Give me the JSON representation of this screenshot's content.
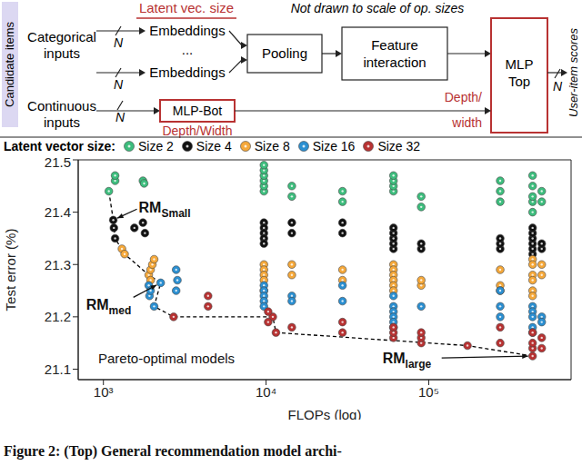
{
  "diagram": {
    "sidebar": "Candidate items",
    "note": "Not drawn to scale of op. sizes",
    "categorical_input": "Categorical inputs",
    "continuous_input": "Continuous inputs",
    "count_label": "N",
    "embeddings": [
      "Embeddings",
      "...",
      "Embeddings"
    ],
    "embeddings_knob": "Latent vec. size",
    "pooling": "Pooling",
    "feature_interaction": "Feature interaction",
    "mlp_bot": "MLP-Bot",
    "mlp_bot_knob": "Depth/Width",
    "mlp_top": "MLP Top",
    "mlp_top_knob": "Depth/ width",
    "output": "User-item scores"
  },
  "chart_data": {
    "type": "scatter",
    "legend_title": "Latent vector size:",
    "x_label": "FLOPs (log)",
    "y_label": "Test error (%)",
    "log": "x",
    "xlim": [
      700,
      750000
    ],
    "xticks": [
      {
        "value": 1000,
        "label": "10³"
      },
      {
        "value": 10000,
        "label": "10⁴"
      },
      {
        "value": 100000,
        "label": "10⁵"
      }
    ],
    "ylim": [
      21.08,
      21.5
    ],
    "yticks": [
      21.1,
      21.2,
      21.3,
      21.4,
      21.5
    ],
    "grid": false,
    "marker": "circle",
    "series": [
      {
        "name": "Size 2",
        "color": "#3dbd7d",
        "points": [
          [
            1080,
            21.44
          ],
          [
            1180,
            21.46
          ],
          [
            1180,
            21.47
          ],
          [
            1750,
            21.46
          ],
          [
            1780,
            21.455
          ],
          [
            9700,
            21.44
          ],
          [
            9700,
            21.45
          ],
          [
            9700,
            21.46
          ],
          [
            9700,
            21.47
          ],
          [
            9700,
            21.48
          ],
          [
            9700,
            21.49
          ],
          [
            14400,
            21.43
          ],
          [
            14400,
            21.45
          ],
          [
            29500,
            21.42
          ],
          [
            29500,
            21.44
          ],
          [
            60700,
            21.44
          ],
          [
            60700,
            21.45
          ],
          [
            60700,
            21.46
          ],
          [
            60700,
            21.47
          ],
          [
            89900,
            21.41
          ],
          [
            89900,
            21.43
          ],
          [
            275000,
            21.42
          ],
          [
            275000,
            21.44
          ],
          [
            275000,
            21.46
          ],
          [
            435000,
            21.4
          ],
          [
            435000,
            21.42
          ],
          [
            435000,
            21.43
          ],
          [
            435000,
            21.45
          ],
          [
            435000,
            21.47
          ],
          [
            495000,
            21.42
          ],
          [
            495000,
            21.44
          ]
        ]
      },
      {
        "name": "Size 4",
        "color": "#111111",
        "points": [
          [
            1150,
            21.385
          ],
          [
            1160,
            21.37
          ],
          [
            1180,
            21.35
          ],
          [
            1550,
            21.37
          ],
          [
            1750,
            21.38
          ],
          [
            1800,
            21.36
          ],
          [
            9700,
            21.38
          ],
          [
            9700,
            21.37
          ],
          [
            9700,
            21.36
          ],
          [
            9700,
            21.35
          ],
          [
            9700,
            21.34
          ],
          [
            14400,
            21.36
          ],
          [
            14400,
            21.38
          ],
          [
            29500,
            21.36
          ],
          [
            29500,
            21.38
          ],
          [
            60700,
            21.33
          ],
          [
            60700,
            21.34
          ],
          [
            60700,
            21.35
          ],
          [
            60700,
            21.36
          ],
          [
            60700,
            21.37
          ],
          [
            89900,
            21.33
          ],
          [
            89900,
            21.34
          ],
          [
            275000,
            21.33
          ],
          [
            275000,
            21.34
          ],
          [
            275000,
            21.35
          ],
          [
            435000,
            21.32
          ],
          [
            435000,
            21.33
          ],
          [
            435000,
            21.34
          ],
          [
            435000,
            21.35
          ],
          [
            435000,
            21.36
          ],
          [
            435000,
            21.37
          ],
          [
            495000,
            21.33
          ],
          [
            495000,
            21.34
          ]
        ]
      },
      {
        "name": "Size 8",
        "color": "#f5a83a",
        "points": [
          [
            1300,
            21.33
          ],
          [
            1350,
            21.32
          ],
          [
            1900,
            21.28
          ],
          [
            1950,
            21.27
          ],
          [
            1950,
            21.29
          ],
          [
            2000,
            21.3
          ],
          [
            2050,
            21.31
          ],
          [
            9700,
            21.3
          ],
          [
            9700,
            21.29
          ],
          [
            9700,
            21.28
          ],
          [
            9700,
            21.27
          ],
          [
            9700,
            21.25
          ],
          [
            14400,
            21.3
          ],
          [
            14400,
            21.28
          ],
          [
            29500,
            21.27
          ],
          [
            29500,
            21.29
          ],
          [
            60700,
            21.3
          ],
          [
            60700,
            21.29
          ],
          [
            60700,
            21.28
          ],
          [
            60700,
            21.27
          ],
          [
            60700,
            21.26
          ],
          [
            60700,
            21.25
          ],
          [
            89900,
            21.26
          ],
          [
            89900,
            21.27
          ],
          [
            275000,
            21.29
          ],
          [
            275000,
            21.26
          ],
          [
            275000,
            21.25
          ],
          [
            435000,
            21.31
          ],
          [
            435000,
            21.3
          ],
          [
            435000,
            21.28
          ],
          [
            435000,
            21.27
          ],
          [
            435000,
            21.25
          ],
          [
            435000,
            21.24
          ],
          [
            495000,
            21.28
          ],
          [
            495000,
            21.3
          ]
        ]
      },
      {
        "name": "Size 16",
        "color": "#2b8fd1",
        "points": [
          [
            1900,
            21.26
          ],
          [
            1920,
            21.24
          ],
          [
            1950,
            21.25
          ],
          [
            2250,
            21.265
          ],
          [
            2050,
            21.22
          ],
          [
            2800,
            21.29
          ],
          [
            2850,
            21.27
          ],
          [
            2800,
            21.25
          ],
          [
            9700,
            21.26
          ],
          [
            9700,
            21.25
          ],
          [
            9700,
            21.24
          ],
          [
            9700,
            21.23
          ],
          [
            9700,
            21.22
          ],
          [
            14400,
            21.24
          ],
          [
            14400,
            21.23
          ],
          [
            29500,
            21.26
          ],
          [
            29500,
            21.23
          ],
          [
            60700,
            21.24
          ],
          [
            60700,
            21.22
          ],
          [
            60700,
            21.21
          ],
          [
            60700,
            21.2
          ],
          [
            60700,
            21.19
          ],
          [
            60700,
            21.18
          ],
          [
            89900,
            21.22
          ],
          [
            275000,
            21.25
          ],
          [
            275000,
            21.22
          ],
          [
            275000,
            21.2
          ],
          [
            435000,
            21.22
          ],
          [
            435000,
            21.21
          ],
          [
            435000,
            21.2
          ],
          [
            435000,
            21.18
          ],
          [
            435000,
            21.17
          ],
          [
            495000,
            21.2
          ],
          [
            495000,
            21.19
          ]
        ]
      },
      {
        "name": "Size 32",
        "color": "#b83232",
        "points": [
          [
            2700,
            21.2
          ],
          [
            4400,
            21.24
          ],
          [
            4400,
            21.22
          ],
          [
            11000,
            21.2
          ],
          [
            11500,
            21.17
          ],
          [
            10300,
            21.21
          ],
          [
            10300,
            21.19
          ],
          [
            14400,
            21.18
          ],
          [
            29500,
            21.19
          ],
          [
            29500,
            21.17
          ],
          [
            60700,
            21.16
          ],
          [
            60700,
            21.17
          ],
          [
            60700,
            21.18
          ],
          [
            89900,
            21.15
          ],
          [
            89900,
            21.16
          ],
          [
            89900,
            21.17
          ],
          [
            173000,
            21.145
          ],
          [
            275000,
            21.15
          ],
          [
            275000,
            21.18
          ],
          [
            435000,
            21.125
          ],
          [
            435000,
            21.14
          ],
          [
            435000,
            21.15
          ],
          [
            435000,
            21.17
          ],
          [
            495000,
            21.16
          ],
          [
            495000,
            21.14
          ]
        ]
      }
    ],
    "pareto": {
      "color": "#000000",
      "line_style": "dashed",
      "points": [
        [
          1080,
          21.44
        ],
        [
          1150,
          21.385
        ],
        [
          1180,
          21.35
        ],
        [
          1350,
          21.32
        ],
        [
          1900,
          21.28
        ],
        [
          2250,
          21.265
        ],
        [
          2050,
          21.22
        ],
        [
          2700,
          21.2
        ],
        [
          11000,
          21.2
        ],
        [
          11500,
          21.17
        ],
        [
          173000,
          21.145
        ],
        [
          435000,
          21.125
        ]
      ]
    },
    "annotations": [
      {
        "text": "RM",
        "subscript": "Small",
        "x": 1150,
        "y": 21.385
      },
      {
        "text": "RM",
        "subscript": "med",
        "x": 2250,
        "y": 21.265
      },
      {
        "text": "RM",
        "subscript": "large",
        "x": 435000,
        "y": 21.125
      }
    ],
    "note": "Pareto-optimal models"
  },
  "caption": "Figure 2: (Top) General recommendation model archi-"
}
